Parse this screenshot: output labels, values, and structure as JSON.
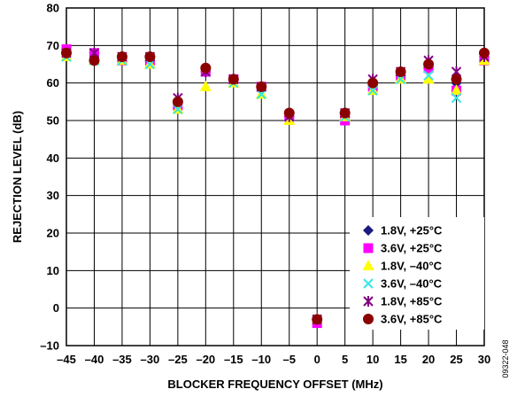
{
  "chart_data": {
    "type": "scatter",
    "xlabel": "BLOCKER FREQUENCY OFFSET (MHz)",
    "ylabel": "REJECTION LEVEL (dB)",
    "xlim": [
      -45,
      30
    ],
    "ylim": [
      -10,
      80
    ],
    "x_ticks": [
      "–45",
      "–40",
      "–35",
      "–30",
      "–25",
      "–20",
      "–15",
      "–10",
      "–5",
      "0",
      "5",
      "10",
      "15",
      "20",
      "25",
      "30"
    ],
    "y_ticks": [
      "–10",
      "0",
      "10",
      "20",
      "30",
      "40",
      "50",
      "60",
      "70",
      "80"
    ],
    "x_tick_values": [
      -45,
      -40,
      -35,
      -30,
      -25,
      -20,
      -15,
      -10,
      -5,
      0,
      5,
      10,
      15,
      20,
      25,
      30
    ],
    "y_tick_values": [
      -10,
      0,
      10,
      20,
      30,
      40,
      50,
      60,
      70,
      80
    ],
    "grid": true,
    "legend_position": "bottom-right",
    "figure_id": "09322-048",
    "x": [
      -45,
      -40,
      -35,
      -30,
      -25,
      -20,
      -15,
      -10,
      -5,
      0,
      5,
      10,
      15,
      20,
      25,
      30
    ],
    "series": [
      {
        "name": "1.8V, +25°C",
        "marker": "diamond",
        "color": "#1a1a80",
        "values": [
          68,
          68,
          67,
          66,
          55,
          63,
          61,
          59,
          51,
          -3,
          51,
          60,
          62,
          64,
          60,
          67
        ]
      },
      {
        "name": "3.6V, +25°C",
        "marker": "square",
        "color": "#ff00ff",
        "values": [
          69,
          68,
          66,
          66,
          54,
          63,
          61,
          59,
          51,
          -4,
          50,
          59,
          62,
          64,
          58,
          66
        ]
      },
      {
        "name": "1.8V, –40°C",
        "marker": "triangle",
        "color": "#ffff00",
        "values": [
          67,
          66,
          66,
          65,
          53,
          59,
          60,
          57,
          50,
          -3,
          51,
          58,
          61,
          61,
          58,
          66
        ]
      },
      {
        "name": "3.6V, –40°C",
        "marker": "x",
        "color": "#33e6e6",
        "values": [
          67,
          66,
          66,
          65,
          53,
          63,
          60,
          57,
          51,
          -3,
          51,
          58,
          61,
          62,
          56,
          67
        ]
      },
      {
        "name": "1.8V, +85°C",
        "marker": "star",
        "color": "#800080",
        "values": [
          68,
          68,
          67,
          67,
          56,
          63,
          61,
          59,
          51,
          -3,
          52,
          61,
          63,
          66,
          63,
          67
        ]
      },
      {
        "name": "3.6V, +85°C",
        "marker": "circle",
        "color": "#8b0000",
        "values": [
          68,
          66,
          67,
          67,
          55,
          64,
          61,
          59,
          52,
          -3,
          52,
          60,
          63,
          65,
          61,
          68
        ]
      }
    ]
  }
}
